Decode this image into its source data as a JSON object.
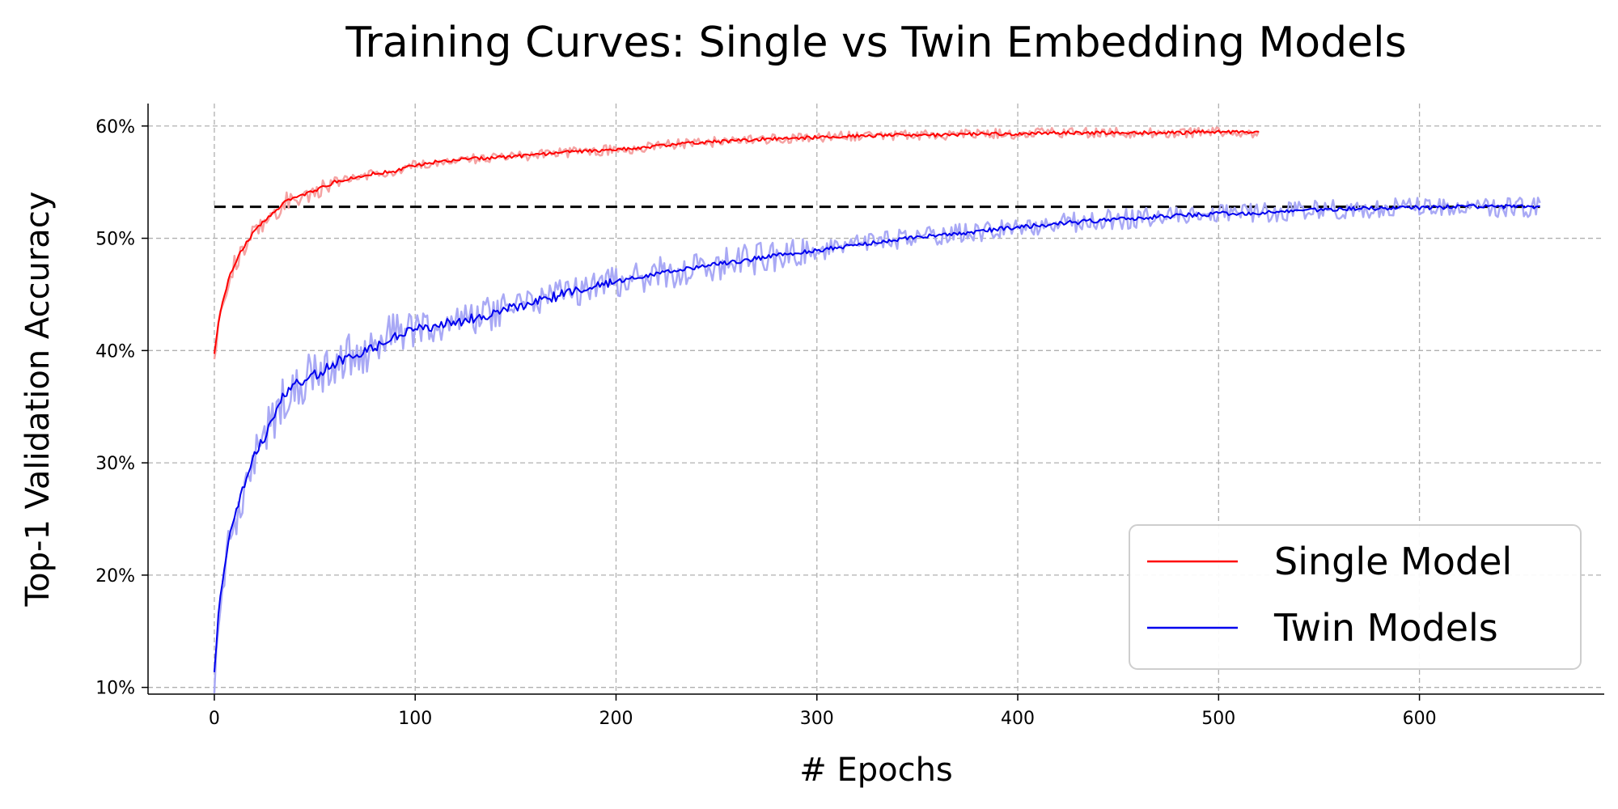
{
  "chart_data": {
    "type": "line",
    "title": "Training Curves: Single vs Twin Embedding Models",
    "xlabel": "# Epochs",
    "ylabel": "Top-1 Validation Accuracy",
    "xlim": [
      -33,
      692
    ],
    "ylim": [
      9.4,
      62
    ],
    "xticks": [
      0,
      100,
      200,
      300,
      400,
      500,
      600
    ],
    "xtick_labels": [
      "0",
      "100",
      "200",
      "300",
      "400",
      "500",
      "600"
    ],
    "yticks": [
      10,
      20,
      30,
      40,
      50,
      60
    ],
    "ytick_labels": [
      "10%",
      "20%",
      "30%",
      "40%",
      "50%",
      "60%"
    ],
    "grid": true,
    "legend_position": "lower-right",
    "reference_line": {
      "y": 52.8,
      "x_start": 0,
      "x_end": 660,
      "color": "#000000",
      "style": "dashed"
    },
    "series": [
      {
        "name": "Single Model",
        "color": "#ff0000",
        "raw_color": "#f5a3a3",
        "x": [
          0,
          2,
          5,
          8,
          12,
          16,
          20,
          25,
          30,
          35,
          40,
          50,
          60,
          70,
          80,
          90,
          100,
          110,
          120,
          130,
          140,
          150,
          160,
          170,
          180,
          190,
          200,
          210,
          220,
          230,
          240,
          250,
          260,
          270,
          280,
          290,
          300,
          320,
          340,
          360,
          380,
          400,
          420,
          440,
          460,
          480,
          500,
          520
        ],
        "values": [
          39.8,
          42.5,
          45.0,
          46.8,
          48.4,
          49.6,
          50.6,
          51.6,
          52.4,
          53.2,
          53.7,
          54.2,
          55.0,
          55.4,
          55.8,
          56.0,
          56.5,
          56.8,
          57.0,
          57.1,
          57.2,
          57.3,
          57.4,
          57.6,
          57.7,
          57.8,
          57.9,
          58.0,
          58.2,
          58.4,
          58.5,
          58.6,
          58.7,
          58.8,
          58.9,
          58.9,
          59.0,
          59.1,
          59.2,
          59.2,
          59.3,
          59.3,
          59.4,
          59.4,
          59.4,
          59.4,
          59.5,
          59.4
        ]
      },
      {
        "name": "Twin Models",
        "color": "#0000ee",
        "raw_color": "#a9a9f5",
        "x": [
          0,
          2,
          4,
          6,
          8,
          10,
          12,
          15,
          18,
          20,
          22,
          25,
          28,
          30,
          33,
          36,
          40,
          45,
          50,
          55,
          60,
          65,
          70,
          75,
          80,
          85,
          90,
          95,
          100,
          110,
          120,
          130,
          140,
          150,
          160,
          170,
          180,
          190,
          200,
          210,
          220,
          230,
          240,
          250,
          260,
          270,
          280,
          290,
          300,
          320,
          340,
          360,
          380,
          400,
          420,
          440,
          460,
          480,
          500,
          520,
          540,
          560,
          580,
          600,
          620,
          640,
          660
        ],
        "values": [
          11.5,
          16.5,
          19.0,
          21.5,
          23.5,
          25.0,
          26.5,
          28.2,
          29.6,
          30.8,
          31.3,
          32.2,
          33.3,
          34.2,
          35.5,
          36.3,
          36.9,
          37.3,
          37.8,
          38.3,
          38.9,
          39.3,
          39.6,
          39.9,
          40.3,
          40.8,
          41.3,
          41.7,
          41.9,
          42.2,
          42.5,
          42.9,
          43.4,
          43.9,
          44.4,
          44.8,
          45.3,
          45.8,
          46.2,
          46.5,
          46.8,
          47.1,
          47.4,
          47.7,
          47.9,
          48.2,
          48.5,
          48.7,
          48.9,
          49.4,
          49.9,
          50.3,
          50.6,
          51.0,
          51.3,
          51.6,
          51.8,
          52.0,
          52.2,
          52.3,
          52.5,
          52.6,
          52.7,
          52.7,
          52.8,
          52.8,
          52.8
        ]
      }
    ]
  }
}
